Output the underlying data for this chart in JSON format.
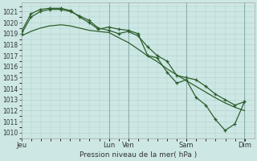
{
  "background_color": "#cde8e4",
  "grid_color": "#b0cccc",
  "line_color": "#2d5e2d",
  "ylabel_text": "Pression niveau de la mer( hPa )",
  "ylim": [
    1009.5,
    1021.8
  ],
  "yticks": [
    1010,
    1011,
    1012,
    1013,
    1014,
    1015,
    1016,
    1017,
    1018,
    1019,
    1020,
    1021
  ],
  "xtick_labels": [
    "Jeu",
    "Lun",
    "Ven",
    "Sam",
    "Dim"
  ],
  "xtick_positions": [
    0.0,
    0.375,
    0.458,
    0.708,
    0.958
  ],
  "total_days": 5.5,
  "series1_x": [
    0.0,
    0.04,
    0.08,
    0.12,
    0.17,
    0.21,
    0.25,
    0.29,
    0.33,
    0.375,
    0.42,
    0.458,
    0.5,
    0.54,
    0.58,
    0.625,
    0.67,
    0.71,
    0.75,
    0.79,
    0.83,
    0.875,
    0.917,
    0.958
  ],
  "series1_y": [
    1018.8,
    1019.2,
    1019.5,
    1019.7,
    1019.8,
    1019.7,
    1019.5,
    1019.3,
    1019.2,
    1019.1,
    1018.6,
    1018.2,
    1017.6,
    1017.0,
    1016.5,
    1015.8,
    1015.2,
    1014.7,
    1014.2,
    1013.7,
    1013.2,
    1012.7,
    1012.3,
    1012.0
  ],
  "series2_x": [
    0.0,
    0.04,
    0.08,
    0.12,
    0.17,
    0.21,
    0.25,
    0.29,
    0.33,
    0.375,
    0.417,
    0.458,
    0.5,
    0.542,
    0.583,
    0.625,
    0.667,
    0.708,
    0.75,
    0.792,
    0.833,
    0.875,
    0.917,
    0.958
  ],
  "series2_y": [
    1019.0,
    1020.5,
    1021.0,
    1021.2,
    1021.2,
    1021.0,
    1020.6,
    1020.2,
    1019.5,
    1019.3,
    1019.0,
    1019.2,
    1018.8,
    1017.8,
    1017.0,
    1016.5,
    1015.2,
    1015.0,
    1014.8,
    1014.2,
    1013.5,
    1013.0,
    1012.5,
    1012.8
  ],
  "series3_x": [
    0.0,
    0.04,
    0.08,
    0.12,
    0.17,
    0.21,
    0.25,
    0.29,
    0.33,
    0.375,
    0.417,
    0.458,
    0.5,
    0.542,
    0.583,
    0.625,
    0.667,
    0.708,
    0.75,
    0.792,
    0.833,
    0.875,
    0.917,
    0.958
  ],
  "series3_y": [
    1019.2,
    1020.8,
    1021.2,
    1021.3,
    1021.3,
    1021.1,
    1020.5,
    1020.0,
    1019.4,
    1019.6,
    1019.4,
    1019.3,
    1019.0,
    1017.0,
    1016.8,
    1015.5,
    1014.5,
    1014.8,
    1013.2,
    1012.5,
    1011.2,
    1010.2,
    1010.8,
    1012.8
  ]
}
